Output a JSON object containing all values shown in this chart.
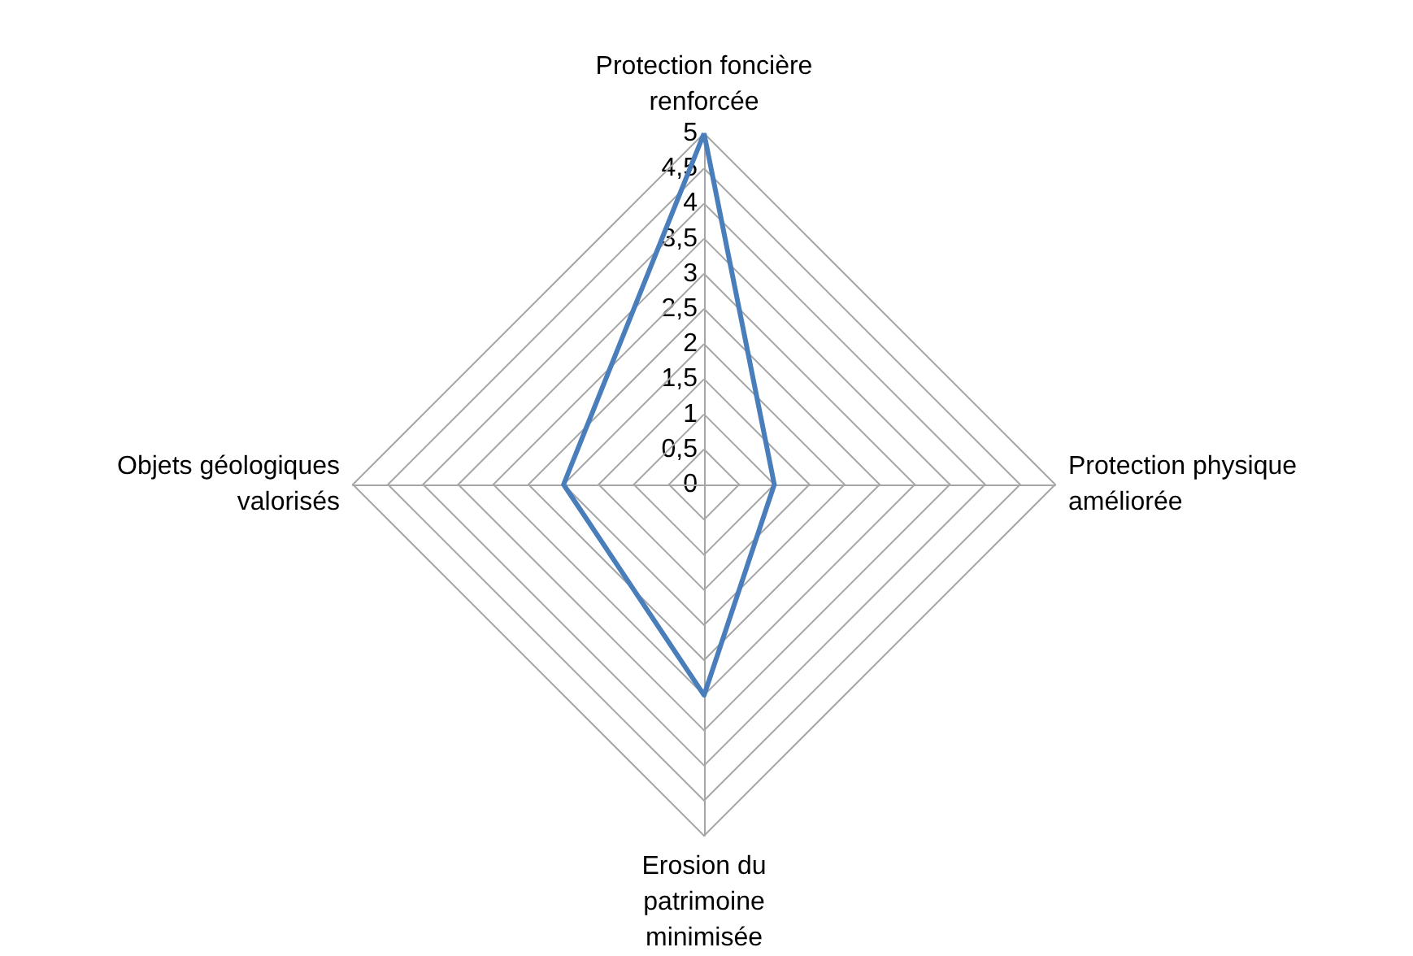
{
  "chart_data": {
    "type": "radar",
    "categories": [
      "Protection foncière renforcée",
      "Protection physique améliorée",
      "Erosion du patrimoine minimisée",
      "Objets géologiques valorisés"
    ],
    "series": [
      {
        "color": "#4a7ebb",
        "values": [
          5,
          1,
          3,
          2
        ]
      }
    ],
    "ylim": [
      0,
      5
    ],
    "yticks": [
      0,
      {
        "value": 0.5,
        "label": "0,5"
      },
      1,
      {
        "value": 1.5,
        "label": "1,5"
      },
      2,
      {
        "value": 2.5,
        "label": "2,5"
      },
      3,
      {
        "value": 3.5,
        "label": "3,5"
      },
      4,
      {
        "value": 4.5,
        "label": "4,5"
      },
      5
    ],
    "grid": true,
    "marker": "none",
    "line_style": "solid"
  }
}
